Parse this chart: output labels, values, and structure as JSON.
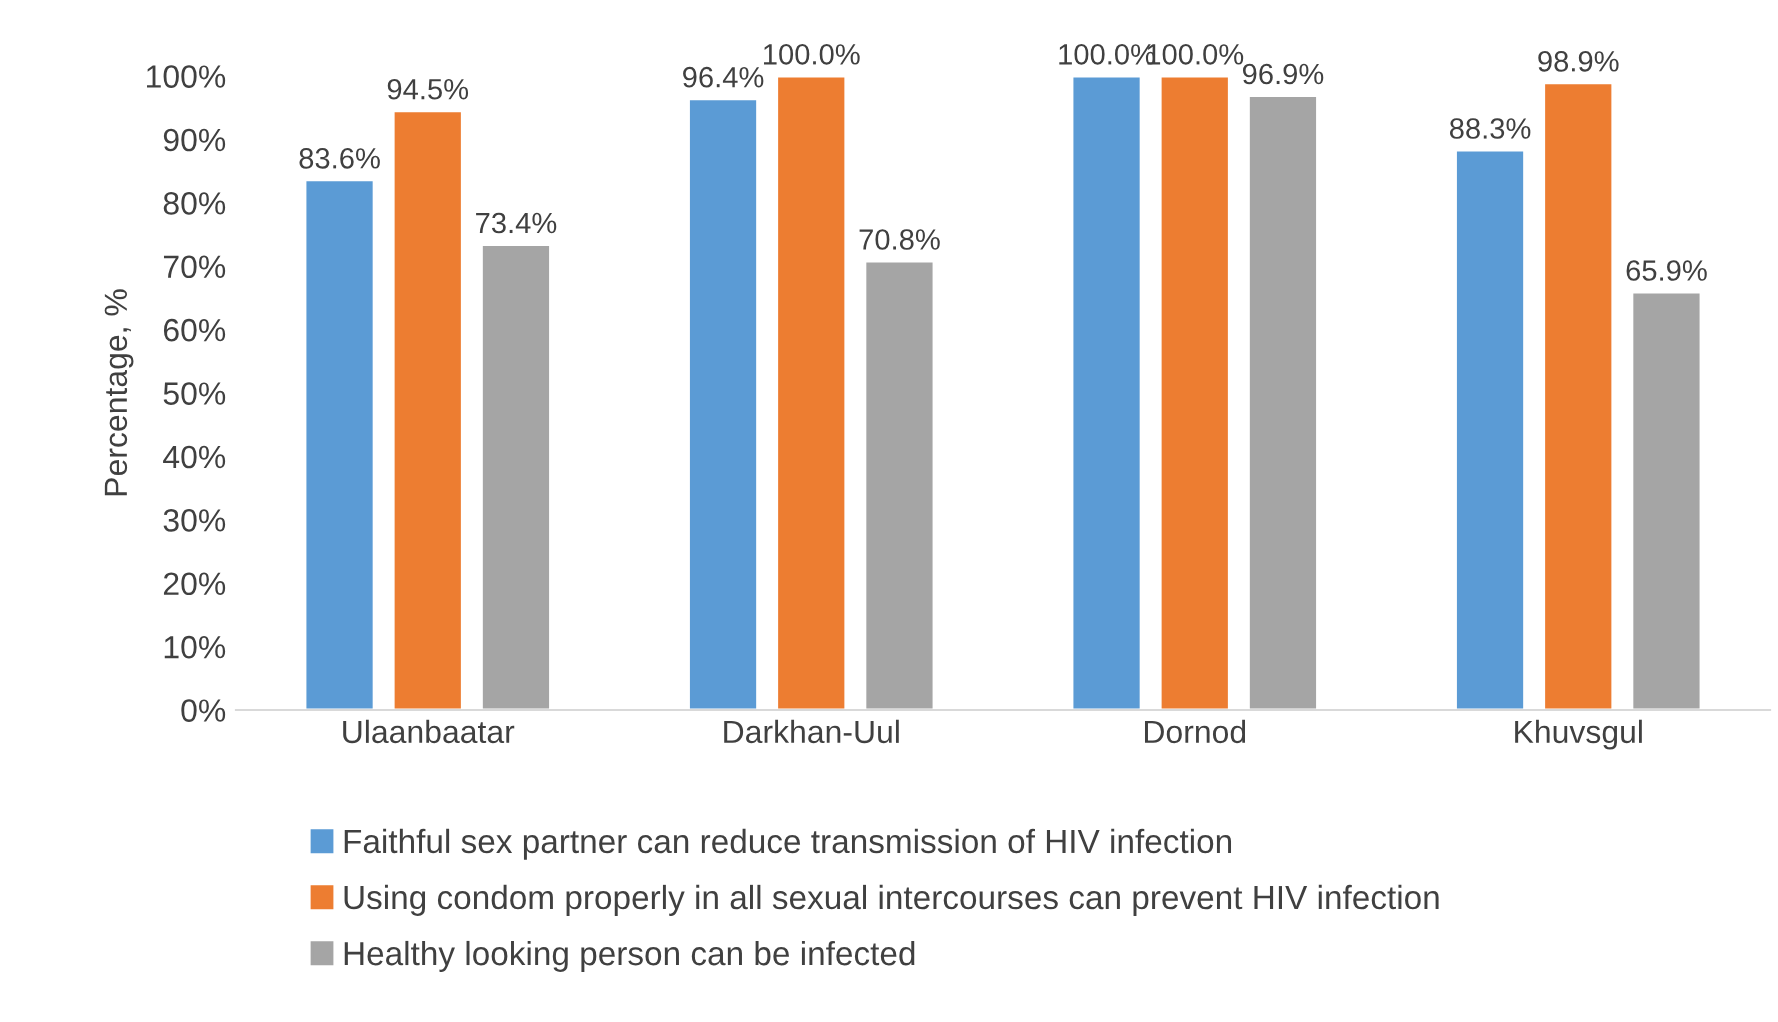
{
  "chart_data": {
    "type": "bar",
    "ylabel": "Percentage, %",
    "categories": [
      "Ulaanbaatar",
      "Darkhan-Uul",
      "Dornod",
      "Khuvsgul"
    ],
    "series": [
      {
        "name": "Faithful sex partner can reduce transmission of HIV infection",
        "color": "#5b9bd5",
        "values": [
          83.6,
          96.4,
          100.0,
          88.3
        ],
        "value_labels": [
          "83.6%",
          "96.4%",
          "100.0%",
          "88.3%"
        ]
      },
      {
        "name": "Using condom properly in all sexual intercourses can prevent HIV infection",
        "color": "#ed7d31",
        "values": [
          94.5,
          100.0,
          100.0,
          98.9
        ],
        "value_labels": [
          "94.5%",
          "100.0%",
          "100.0%",
          "98.9%"
        ]
      },
      {
        "name": "Healthy looking person can be infected",
        "color": "#a5a5a5",
        "values": [
          73.4,
          70.8,
          96.9,
          65.9
        ],
        "value_labels": [
          "73.4%",
          "70.8%",
          "96.9%",
          "65.9%"
        ]
      }
    ],
    "ylim": [
      0,
      100
    ],
    "yticks": [
      {
        "value": 0,
        "label": "0%"
      },
      {
        "value": 10,
        "label": "10%"
      },
      {
        "value": 20,
        "label": "20%"
      },
      {
        "value": 30,
        "label": "30%"
      },
      {
        "value": 40,
        "label": "40%"
      },
      {
        "value": 50,
        "label": "50%"
      },
      {
        "value": 60,
        "label": "60%"
      },
      {
        "value": 70,
        "label": "70%"
      },
      {
        "value": 80,
        "label": "80%"
      },
      {
        "value": 90,
        "label": "90%"
      },
      {
        "value": 100,
        "label": "100%"
      }
    ],
    "grid": false,
    "legend": "bottom"
  }
}
